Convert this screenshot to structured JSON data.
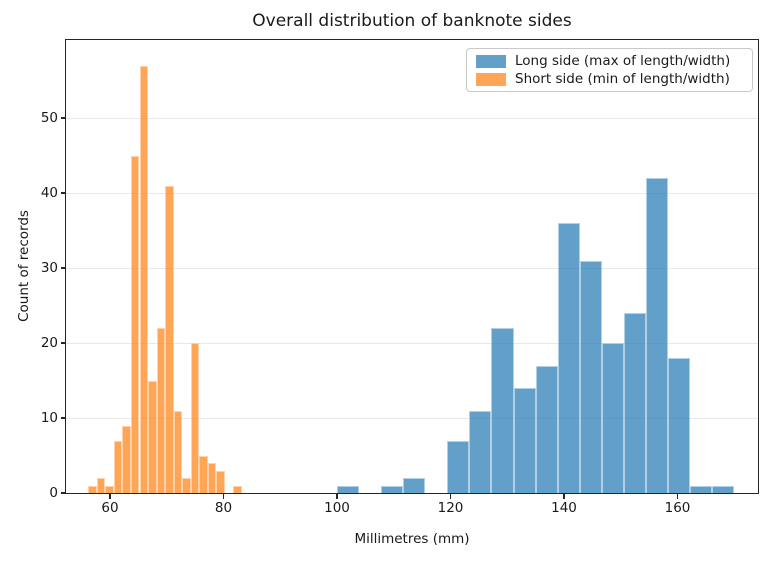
{
  "title": "Overall distribution of banknote sides",
  "axes": {
    "xlabel": "Millimetres (mm)",
    "ylabel": "Count of records",
    "x_ticks": [
      60,
      80,
      100,
      120,
      140,
      160
    ],
    "y_ticks": [
      0,
      10,
      20,
      30,
      40,
      50
    ]
  },
  "legend": {
    "items": [
      {
        "label": "Long side (max of length/width)",
        "color": "#1f77b4"
      },
      {
        "label": "Short side (min of length/width)",
        "color": "#ff7f0e"
      }
    ]
  },
  "chart_data": {
    "type": "bar",
    "subtype": "histogram",
    "title": "Overall distribution of banknote sides",
    "xlabel": "Millimetres (mm)",
    "ylabel": "Count of records",
    "xlim": [
      52.3,
      174.2
    ],
    "ylim": [
      0,
      60.4
    ],
    "grid": "y-only",
    "grid_color": "#e9e9e9",
    "legend_position": "upper right",
    "bar_alpha": 0.7,
    "series": [
      {
        "name": "Long side (max of length/width)",
        "color": "#1f77b4",
        "bin_start": 100.0,
        "bin_width": 3.8889,
        "counts": [
          1,
          0,
          1,
          2,
          0,
          7,
          11,
          22,
          14,
          17,
          36,
          31,
          20,
          24,
          42,
          18,
          1,
          1
        ]
      },
      {
        "name": "Short side (min of length/width)",
        "color": "#ff7f0e",
        "bin_start": 56.2,
        "bin_width": 1.5,
        "counts": [
          1,
          2,
          1,
          7,
          9,
          45,
          57,
          15,
          22,
          41,
          11,
          2,
          20,
          5,
          4,
          3,
          0,
          1
        ]
      }
    ]
  }
}
